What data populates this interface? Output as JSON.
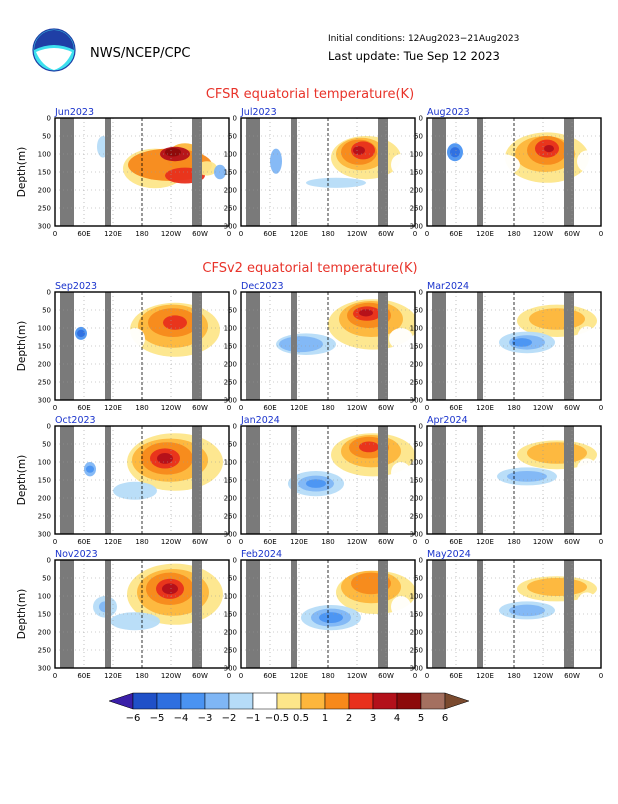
{
  "header": {
    "agency": "NWS/NCEP/CPC",
    "init_conditions": "Initial conditions: 12Aug2023−21Aug2023",
    "last_update": "Last update: Tue Sep 12 2023"
  },
  "sections": {
    "cfsr_title": "CFSR equatorial temperature(K)",
    "cfsv2_title": "CFSv2 equatorial temperature(K)"
  },
  "colors": {
    "title_red": "#e8332a",
    "label_blue": "#1a33cc",
    "land_gray": "#7a7a7a"
  },
  "chart_data": {
    "type": "heatmap",
    "ylabel": "Depth(m)",
    "y_ticks": [
      "0",
      "50",
      "100",
      "150",
      "200",
      "250",
      "300"
    ],
    "x_ticks": [
      "0",
      "60E",
      "120E",
      "180",
      "120W",
      "60W",
      "0"
    ],
    "ylim": [
      300,
      0
    ],
    "panels": [
      {
        "label": "Jun2023",
        "source": "CFSR"
      },
      {
        "label": "Jul2023",
        "source": "CFSR"
      },
      {
        "label": "Aug2023",
        "source": "CFSR"
      },
      {
        "label": "Sep2023",
        "source": "CFSv2"
      },
      {
        "label": "Dec2023",
        "source": "CFSv2"
      },
      {
        "label": "Mar2024",
        "source": "CFSv2"
      },
      {
        "label": "Oct2023",
        "source": "CFSv2"
      },
      {
        "label": "Jan2024",
        "source": "CFSv2"
      },
      {
        "label": "Apr2024",
        "source": "CFSv2"
      },
      {
        "label": "Nov2023",
        "source": "CFSv2"
      },
      {
        "label": "Feb2024",
        "source": "CFSv2"
      },
      {
        "label": "May2024",
        "source": "CFSv2"
      }
    ],
    "colorbar": {
      "labels": [
        "−6",
        "−5",
        "−4",
        "−3",
        "−2",
        "−1",
        "−0.5",
        "0.5",
        "1",
        "2",
        "3",
        "4",
        "5",
        "6"
      ],
      "colors": [
        "#3a1fa8",
        "#1f50c8",
        "#2e6fe0",
        "#4a93f2",
        "#7fb6f5",
        "#b6dcf8",
        "#ffffff",
        "#fde68a",
        "#fdb63c",
        "#f7891b",
        "#e8301c",
        "#b3101a",
        "#8c0a0a",
        "#a47060",
        "#7a4a2e"
      ]
    }
  }
}
